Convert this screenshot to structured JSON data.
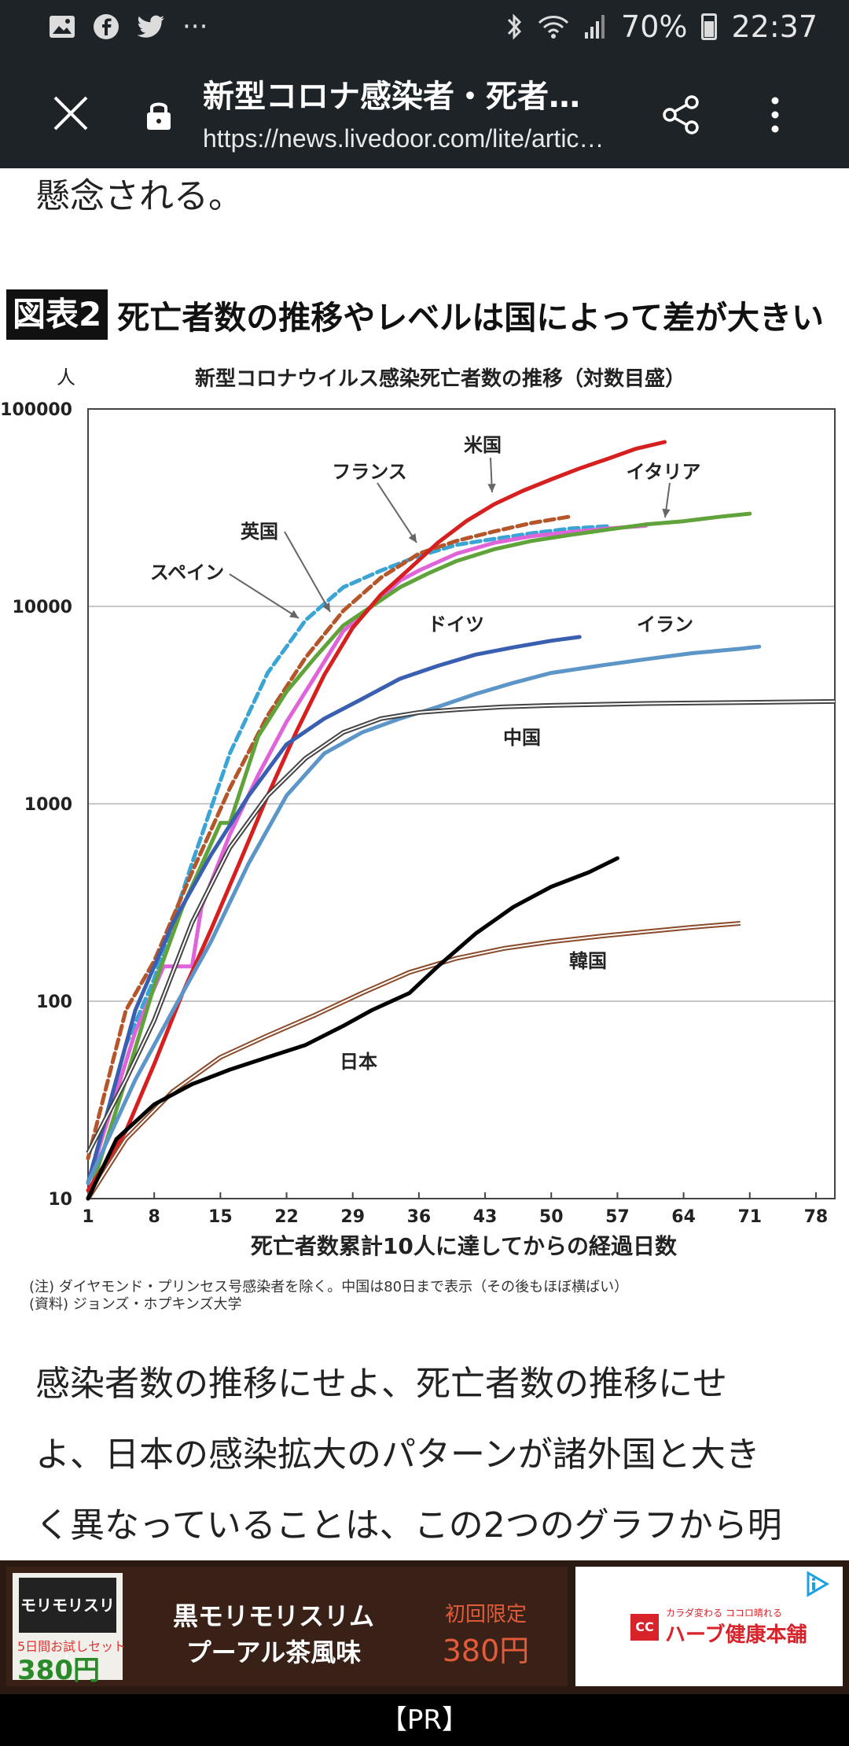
{
  "statusbar": {
    "left_icons": [
      "image-icon",
      "facebook-icon",
      "twitter-icon",
      "overflow-dots-icon"
    ],
    "battery": "70%",
    "time": "22:37"
  },
  "toolbar": {
    "title": "新型コロナ感染者・死者…",
    "url": "https://news.livedoor.com/lite/artic…"
  },
  "article": {
    "para_top": "懸念される。",
    "figure_badge": "図表2",
    "figure_title": "死亡者数の推移やレベルは国によって差が大きい",
    "para_bottom": [
      "感染者数の推移にせよ、死亡者数の推移にせ",
      "よ、日本の感染拡大のパターンが諸外国と大き",
      "く異なっていることは、この2つのグラフから明"
    ]
  },
  "chart_data": {
    "type": "line",
    "title": "新型コロナウイルス感染死亡者数の推移（対数目盛）",
    "ylabel": "人",
    "xlabel": "死亡者数累計10人に達してからの経過日数",
    "yscale": "log",
    "ylim": [
      10,
      100000
    ],
    "xlim": [
      1,
      80
    ],
    "yticks": [
      "100000",
      "10000",
      "1000",
      "100",
      "10"
    ],
    "xticks": [
      "1",
      "8",
      "15",
      "22",
      "29",
      "36",
      "43",
      "50",
      "57",
      "64",
      "71",
      "78"
    ],
    "grid": "horizontal",
    "series": [
      {
        "name": "スペイン",
        "color": "#3aa4d4",
        "style": "dashed",
        "points": [
          [
            1,
            12
          ],
          [
            5,
            60
          ],
          [
            8,
            130
          ],
          [
            12,
            500
          ],
          [
            16,
            1800
          ],
          [
            20,
            4600
          ],
          [
            24,
            8500
          ],
          [
            28,
            12500
          ],
          [
            32,
            15200
          ],
          [
            36,
            18000
          ],
          [
            40,
            20500
          ],
          [
            44,
            22000
          ],
          [
            48,
            23500
          ],
          [
            52,
            24800
          ],
          [
            56,
            25500
          ]
        ]
      },
      {
        "name": "英国",
        "color": "#b5562a",
        "style": "dashed",
        "points": [
          [
            1,
            16
          ],
          [
            5,
            90
          ],
          [
            8,
            160
          ],
          [
            12,
            450
          ],
          [
            16,
            1200
          ],
          [
            20,
            2800
          ],
          [
            24,
            5500
          ],
          [
            28,
            9500
          ],
          [
            32,
            14000
          ],
          [
            36,
            18500
          ],
          [
            40,
            21500
          ],
          [
            44,
            24000
          ],
          [
            48,
            26500
          ],
          [
            52,
            28500
          ]
        ]
      },
      {
        "name": "フランス",
        "color": "#e064d9",
        "style": "solid",
        "points": [
          [
            1,
            12
          ],
          [
            6,
            70
          ],
          [
            9,
            150
          ],
          [
            12,
            150
          ],
          [
            13,
            300
          ],
          [
            16,
            700
          ],
          [
            19,
            1400
          ],
          [
            22,
            2600
          ],
          [
            25,
            4400
          ],
          [
            28,
            7500
          ],
          [
            31,
            10000
          ],
          [
            34,
            13500
          ],
          [
            36,
            15200
          ],
          [
            40,
            18500
          ],
          [
            44,
            21000
          ],
          [
            48,
            22700
          ],
          [
            52,
            23800
          ],
          [
            56,
            24800
          ],
          [
            60,
            25600
          ]
        ]
      },
      {
        "name": "イタリア",
        "color": "#5fa33a",
        "style": "solid",
        "points": [
          [
            1,
            10
          ],
          [
            5,
            40
          ],
          [
            8,
            120
          ],
          [
            11,
            300
          ],
          [
            15,
            800
          ],
          [
            16,
            800
          ],
          [
            19,
            2200
          ],
          [
            22,
            3700
          ],
          [
            25,
            5500
          ],
          [
            28,
            8000
          ],
          [
            31,
            10000
          ],
          [
            34,
            12500
          ],
          [
            37,
            14700
          ],
          [
            40,
            17000
          ],
          [
            44,
            19500
          ],
          [
            48,
            21500
          ],
          [
            52,
            23000
          ],
          [
            56,
            24500
          ],
          [
            60,
            26000
          ],
          [
            64,
            27000
          ],
          [
            68,
            28500
          ],
          [
            71,
            29500
          ]
        ]
      },
      {
        "name": "米国",
        "color": "#d61f1f",
        "style": "solid",
        "points": [
          [
            1,
            11
          ],
          [
            5,
            22
          ],
          [
            8,
            48
          ],
          [
            11,
            110
          ],
          [
            14,
            230
          ],
          [
            17,
            500
          ],
          [
            20,
            1100
          ],
          [
            23,
            2300
          ],
          [
            26,
            4500
          ],
          [
            29,
            7800
          ],
          [
            32,
            11500
          ],
          [
            35,
            15500
          ],
          [
            38,
            21000
          ],
          [
            41,
            27000
          ],
          [
            44,
            33000
          ],
          [
            47,
            38500
          ],
          [
            50,
            44000
          ],
          [
            53,
            50000
          ],
          [
            56,
            56000
          ],
          [
            59,
            63000
          ],
          [
            62,
            68000
          ]
        ]
      },
      {
        "name": "ドイツ",
        "color": "#3a5fb0",
        "style": "solid",
        "points": [
          [
            1,
            12
          ],
          [
            6,
            90
          ],
          [
            10,
            250
          ],
          [
            14,
            550
          ],
          [
            18,
            1100
          ],
          [
            22,
            2000
          ],
          [
            26,
            2700
          ],
          [
            30,
            3400
          ],
          [
            34,
            4300
          ],
          [
            38,
            5000
          ],
          [
            42,
            5700
          ],
          [
            46,
            6200
          ],
          [
            50,
            6700
          ],
          [
            53,
            7000
          ]
        ]
      },
      {
        "name": "イラン",
        "color": "#5c96c8",
        "style": "solid",
        "points": [
          [
            1,
            12
          ],
          [
            6,
            40
          ],
          [
            10,
            90
          ],
          [
            14,
            200
          ],
          [
            18,
            500
          ],
          [
            22,
            1100
          ],
          [
            26,
            1800
          ],
          [
            30,
            2300
          ],
          [
            34,
            2700
          ],
          [
            38,
            3100
          ],
          [
            42,
            3600
          ],
          [
            46,
            4100
          ],
          [
            50,
            4600
          ],
          [
            55,
            5000
          ],
          [
            60,
            5400
          ],
          [
            65,
            5800
          ],
          [
            70,
            6100
          ],
          [
            72,
            6250
          ]
        ]
      },
      {
        "name": "中国",
        "color": "#444444",
        "style": "double",
        "points": [
          [
            1,
            17
          ],
          [
            5,
            40
          ],
          [
            8,
            80
          ],
          [
            12,
            250
          ],
          [
            16,
            600
          ],
          [
            20,
            1100
          ],
          [
            24,
            1700
          ],
          [
            28,
            2300
          ],
          [
            32,
            2700
          ],
          [
            36,
            2900
          ],
          [
            40,
            3000
          ],
          [
            45,
            3100
          ],
          [
            50,
            3150
          ],
          [
            60,
            3220
          ],
          [
            70,
            3260
          ],
          [
            80,
            3300
          ]
        ]
      },
      {
        "name": "韓国",
        "color": "#8b4a2a",
        "style": "double",
        "points": [
          [
            1,
            10
          ],
          [
            5,
            20
          ],
          [
            10,
            35
          ],
          [
            15,
            52
          ],
          [
            20,
            67
          ],
          [
            25,
            85
          ],
          [
            30,
            110
          ],
          [
            35,
            140
          ],
          [
            40,
            165
          ],
          [
            45,
            185
          ],
          [
            50,
            200
          ],
          [
            55,
            213
          ],
          [
            60,
            225
          ],
          [
            65,
            237
          ],
          [
            70,
            248
          ]
        ]
      },
      {
        "name": "日本",
        "color": "#000000",
        "style": "solid",
        "points": [
          [
            1,
            10
          ],
          [
            4,
            20
          ],
          [
            8,
            30
          ],
          [
            12,
            38
          ],
          [
            16,
            45
          ],
          [
            20,
            52
          ],
          [
            24,
            60
          ],
          [
            28,
            75
          ],
          [
            31,
            90
          ],
          [
            35,
            110
          ],
          [
            38,
            150
          ],
          [
            42,
            220
          ],
          [
            46,
            300
          ],
          [
            50,
            380
          ],
          [
            54,
            450
          ],
          [
            57,
            530
          ]
        ]
      }
    ],
    "annotations": [
      "米国",
      "フランス",
      "イタリア",
      "英国",
      "スペイン",
      "ドイツ",
      "イラン",
      "中国",
      "韓国",
      "日本"
    ],
    "notes": [
      "(注) ダイヤモンド・プリンセス号感染者を除く。中国は80日まで表示（その後もほぼ横ばい）",
      "(資料) ジョンズ・ホプキンズ大学"
    ]
  },
  "ad": {
    "thumb_brand": "モリモリスリム",
    "thumb_trial": "5日間お試しセット",
    "thumb_price": "380円",
    "product_line1": "黒モリモリスリム",
    "product_line2": "プーアル茶風味",
    "limited": "初回限定",
    "price": "380円",
    "brand_logo": "CC",
    "brand_tag": "カラダ変わる ココロ晴れる",
    "brand": "ハーブ健康本舗"
  },
  "pr_label": "【PR】"
}
